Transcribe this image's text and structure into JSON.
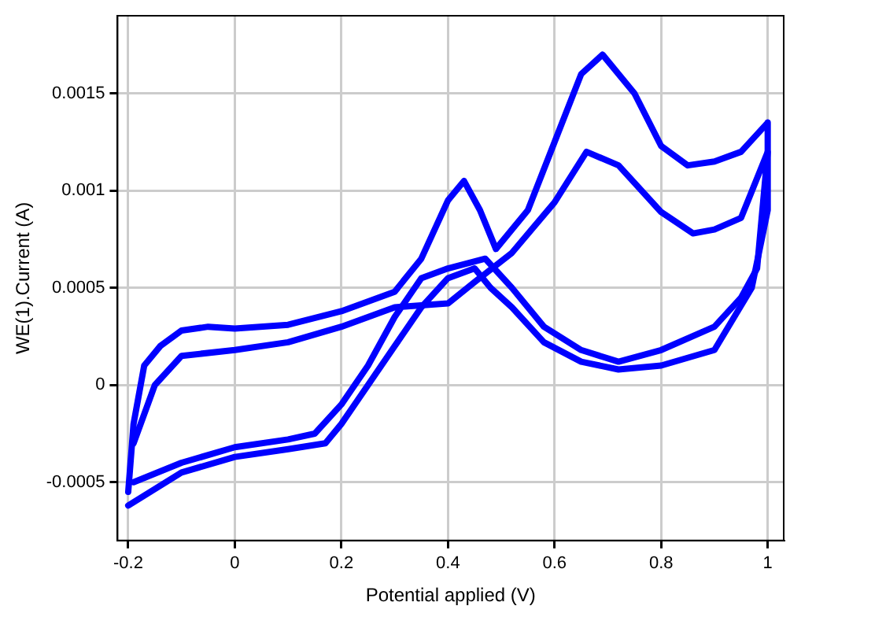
{
  "chart_data": {
    "type": "line",
    "xlabel": "Potential applied (V)",
    "ylabel": "WE(1).Current (A)",
    "xlim": [
      -0.22,
      1.03
    ],
    "xticks": [
      -0.2,
      0,
      0.2,
      0.4,
      0.6,
      0.8,
      1
    ],
    "ylim": [
      -0.0008,
      0.0019
    ],
    "yticks": [
      -0.0005,
      0,
      0.0005,
      0.001,
      0.0015
    ],
    "grid": true,
    "legend": false,
    "marker": "none",
    "line_style": "solid",
    "series": [
      {
        "color": "#0000ff",
        "x": [
          -0.2,
          -0.19,
          -0.17,
          -0.14,
          -0.1,
          -0.05,
          0,
          0.1,
          0.2,
          0.3,
          0.35,
          0.4,
          0.43,
          0.46,
          0.49,
          0.55,
          0.6,
          0.65,
          0.69,
          0.75,
          0.8,
          0.85,
          0.9,
          0.95,
          1.0,
          1.0,
          0.97,
          0.9,
          0.8,
          0.72,
          0.65,
          0.58,
          0.52,
          0.48,
          0.45,
          0.4,
          0.35,
          0.3,
          0.25,
          0.2,
          0.17,
          0.1,
          0,
          -0.1,
          -0.2
        ],
        "values": [
          -0.00055,
          -0.0002,
          0.0001,
          0.0002,
          0.00028,
          0.0003,
          0.00029,
          0.00031,
          0.00038,
          0.00048,
          0.00065,
          0.00095,
          0.00105,
          0.0009,
          0.0007,
          0.0009,
          0.00125,
          0.0016,
          0.0017,
          0.0015,
          0.00123,
          0.00113,
          0.00115,
          0.0012,
          0.00135,
          0.0009,
          0.0005,
          0.00018,
          0.0001,
          8e-05,
          0.00012,
          0.00022,
          0.0004,
          0.0005,
          0.0006,
          0.00055,
          0.0004,
          0.0002,
          0,
          -0.0002,
          -0.0003,
          -0.00033,
          -0.00037,
          -0.00045,
          -0.00062
        ]
      },
      {
        "color": "#0000ff",
        "x": [
          -0.19,
          -0.15,
          -0.1,
          0,
          0.1,
          0.2,
          0.3,
          0.4,
          0.45,
          0.52,
          0.6,
          0.66,
          0.72,
          0.8,
          0.86,
          0.9,
          0.95,
          1.0,
          0.98,
          0.95,
          0.9,
          0.8,
          0.72,
          0.65,
          0.58,
          0.52,
          0.47,
          0.4,
          0.35,
          0.3,
          0.25,
          0.2,
          0.15,
          0.1,
          0,
          -0.1,
          -0.19
        ],
        "values": [
          -0.0003,
          0,
          0.00015,
          0.00018,
          0.00022,
          0.0003,
          0.0004,
          0.00042,
          0.00053,
          0.00068,
          0.00094,
          0.0012,
          0.00113,
          0.00089,
          0.00078,
          0.0008,
          0.00086,
          0.0012,
          0.0006,
          0.00045,
          0.0003,
          0.00018,
          0.00012,
          0.00018,
          0.0003,
          0.0005,
          0.00065,
          0.0006,
          0.00055,
          0.00035,
          0.0001,
          -0.0001,
          -0.00025,
          -0.00028,
          -0.00032,
          -0.0004,
          -0.0005
        ]
      }
    ]
  }
}
